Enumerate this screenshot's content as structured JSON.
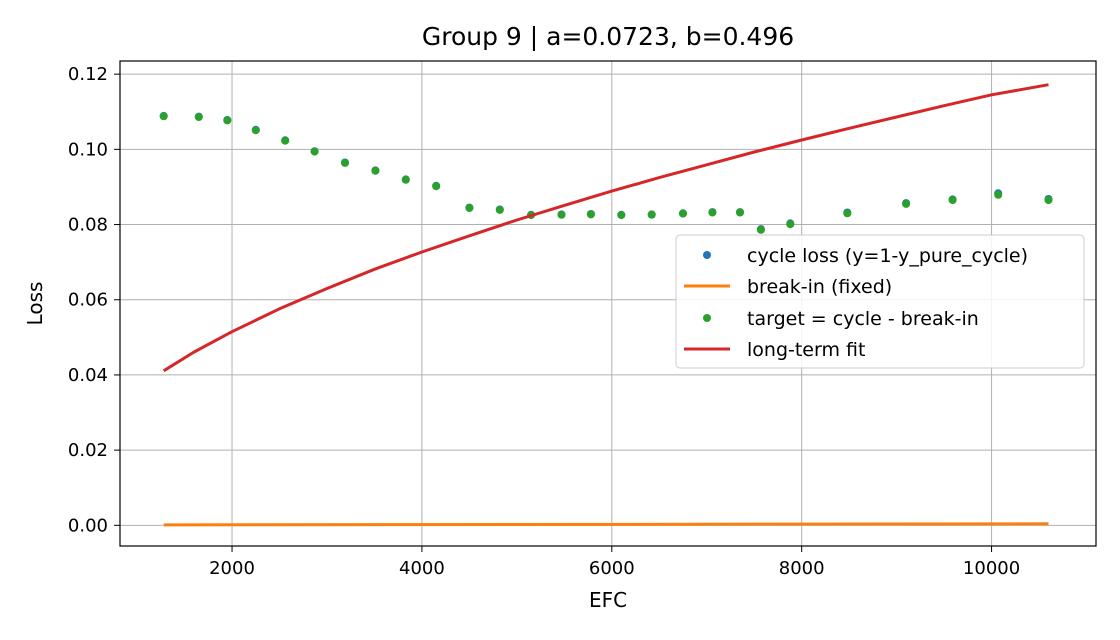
{
  "chart_data": {
    "type": "line",
    "title": "Group 9 | a=0.0723, b=0.496",
    "xlabel": "EFC",
    "ylabel": "Loss",
    "xlim": [
      820,
      11100
    ],
    "ylim": [
      -0.0055,
      0.1235
    ],
    "xticks": [
      2000,
      4000,
      6000,
      8000,
      10000
    ],
    "xtick_labels": [
      "2000",
      "4000",
      "6000",
      "8000",
      "10000"
    ],
    "yticks": [
      0.0,
      0.02,
      0.04,
      0.06,
      0.08,
      0.1,
      0.12
    ],
    "ytick_labels": [
      "0.00",
      "0.02",
      "0.04",
      "0.06",
      "0.08",
      "0.10",
      "0.12"
    ],
    "grid": true,
    "legend_position": "center-right",
    "series": [
      {
        "name": "cycle loss (y=1-y_pure_cycle)",
        "kind": "scatter",
        "color": "#1f77b4",
        "x": [
          1280,
          1650,
          1950,
          2250,
          2560,
          2870,
          3190,
          3510,
          3830,
          4150,
          4500,
          4820,
          5150,
          5470,
          5780,
          6100,
          6420,
          6750,
          7060,
          7350,
          7570,
          7880,
          8480,
          9100,
          9590,
          10070,
          10600
        ],
        "y": [
          0.1089,
          0.1087,
          0.1078,
          0.1052,
          0.1024,
          0.0995,
          0.0965,
          0.0944,
          0.092,
          0.0903,
          0.0845,
          0.084,
          0.0826,
          0.0827,
          0.0828,
          0.0826,
          0.0827,
          0.083,
          0.0833,
          0.0833,
          0.0788,
          0.0803,
          0.0832,
          0.0857,
          0.0867,
          0.0883,
          0.0868
        ]
      },
      {
        "name": "break-in (fixed)",
        "kind": "line",
        "color": "#ff7f0e",
        "x": [
          1280,
          10600
        ],
        "y": [
          0.0001,
          0.0004
        ]
      },
      {
        "name": "target = cycle - break-in",
        "kind": "scatter",
        "color": "#2ca02c",
        "x": [
          1280,
          1650,
          1950,
          2250,
          2560,
          2870,
          3190,
          3510,
          3830,
          4150,
          4500,
          4820,
          5150,
          5470,
          5780,
          6100,
          6420,
          6750,
          7060,
          7350,
          7570,
          7880,
          8480,
          9100,
          9590,
          10070,
          10600
        ],
        "y": [
          0.1088,
          0.1086,
          0.1077,
          0.1051,
          0.1023,
          0.0994,
          0.0964,
          0.0943,
          0.0919,
          0.0902,
          0.0844,
          0.0839,
          0.0825,
          0.0826,
          0.0827,
          0.0825,
          0.0826,
          0.0829,
          0.0832,
          0.0832,
          0.0786,
          0.0801,
          0.083,
          0.0855,
          0.0865,
          0.0879,
          0.0865
        ]
      },
      {
        "name": "long-term fit",
        "kind": "line",
        "color": "#d62728",
        "a": 0.0723,
        "b": 0.496,
        "x": [
          1280,
          1600,
          2000,
          2500,
          3000,
          3500,
          4000,
          4500,
          5000,
          5500,
          6000,
          6500,
          7000,
          7500,
          8000,
          8500,
          9000,
          9500,
          10000,
          10600
        ],
        "y": [
          0.0411,
          0.0461,
          0.0515,
          0.0576,
          0.063,
          0.0681,
          0.0727,
          0.077,
          0.0812,
          0.0851,
          0.0889,
          0.0925,
          0.0959,
          0.0993,
          0.1025,
          0.1056,
          0.1086,
          0.1116,
          0.1145,
          0.1172
        ]
      }
    ]
  }
}
